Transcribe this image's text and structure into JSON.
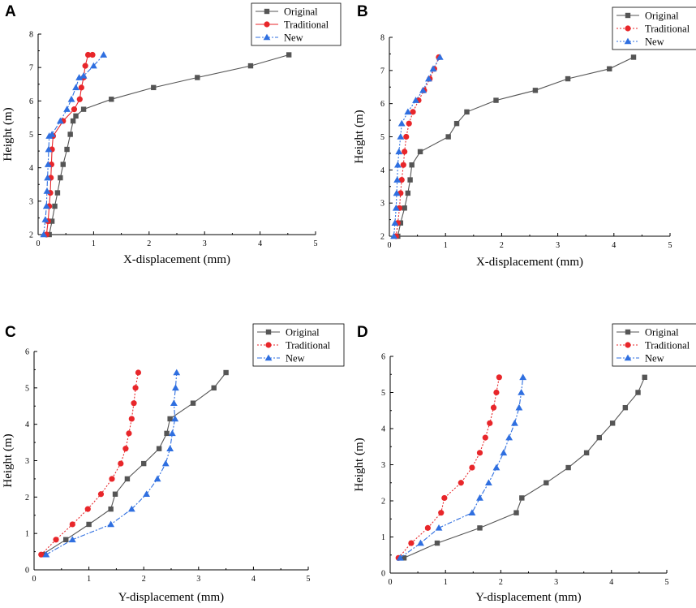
{
  "chart_data": [
    {
      "panel": "A",
      "type": "line",
      "xlabel": "X-displacement  (mm)",
      "ylabel": "Height (m)",
      "xlim": [
        0,
        5
      ],
      "ylim": [
        2,
        8
      ],
      "xticks": [
        0,
        1,
        2,
        3,
        4,
        5
      ],
      "yticks": [
        2,
        3,
        4,
        5,
        6,
        7,
        8
      ],
      "legend_position": "top-right",
      "series": [
        {
          "name": "Original",
          "color": "#555555",
          "marker": "square",
          "line": "solid",
          "x": [
            0.2,
            0.25,
            0.3,
            0.35,
            0.4,
            0.45,
            0.52,
            0.58,
            0.63,
            0.68,
            0.82,
            1.32,
            2.08,
            2.87,
            3.83,
            4.52
          ],
          "y": [
            2.0,
            2.4,
            2.85,
            3.25,
            3.7,
            4.1,
            4.55,
            5.0,
            5.4,
            5.55,
            5.75,
            6.05,
            6.4,
            6.7,
            7.05,
            7.38
          ]
        },
        {
          "name": "Traditional",
          "color": "#e8262a",
          "marker": "circle",
          "line": "solid",
          "x": [
            0.15,
            0.18,
            0.2,
            0.22,
            0.23,
            0.24,
            0.25,
            0.27,
            0.45,
            0.65,
            0.75,
            0.78,
            0.82,
            0.85,
            0.9,
            0.98
          ],
          "y": [
            2.0,
            2.4,
            2.85,
            3.25,
            3.7,
            4.1,
            4.55,
            4.95,
            5.4,
            5.75,
            6.05,
            6.4,
            6.7,
            7.05,
            7.38,
            7.38
          ]
        },
        {
          "name": "New",
          "color": "#2f6fe0",
          "marker": "triangle",
          "line": "dashdot",
          "x": [
            0.1,
            0.13,
            0.15,
            0.16,
            0.17,
            0.18,
            0.19,
            0.2,
            0.25,
            0.4,
            0.52,
            0.6,
            0.68,
            0.74,
            0.82,
            1.0,
            1.18
          ],
          "y": [
            2.0,
            2.45,
            2.85,
            3.3,
            3.7,
            4.1,
            4.55,
            4.95,
            5.0,
            5.4,
            5.75,
            6.05,
            6.4,
            6.7,
            6.75,
            7.05,
            7.38
          ]
        }
      ]
    },
    {
      "panel": "B",
      "type": "line",
      "xlabel": "X-displacement  (mm)",
      "ylabel": "Height (m)",
      "xlim": [
        0,
        5
      ],
      "ylim": [
        2,
        8
      ],
      "xticks": [
        0,
        1,
        2,
        3,
        4,
        5
      ],
      "yticks": [
        2,
        3,
        4,
        5,
        6,
        7,
        8
      ],
      "legend_position": "top-right",
      "series": [
        {
          "name": "Original",
          "color": "#555555",
          "marker": "square",
          "line": "solid",
          "x": [
            0.15,
            0.2,
            0.27,
            0.33,
            0.37,
            0.4,
            0.55,
            1.05,
            1.2,
            1.38,
            1.9,
            2.6,
            3.18,
            3.92,
            4.35
          ],
          "y": [
            2.0,
            2.4,
            2.85,
            3.3,
            3.7,
            4.15,
            4.55,
            5.0,
            5.4,
            5.75,
            6.1,
            6.4,
            6.75,
            7.05,
            7.4
          ]
        },
        {
          "name": "Traditional",
          "color": "#e8262a",
          "marker": "circle",
          "line": "dotted",
          "x": [
            0.12,
            0.15,
            0.18,
            0.2,
            0.22,
            0.25,
            0.27,
            0.3,
            0.35,
            0.42,
            0.52,
            0.62,
            0.72,
            0.8,
            0.88
          ],
          "y": [
            2.0,
            2.4,
            2.85,
            3.3,
            3.7,
            4.15,
            4.55,
            5.0,
            5.4,
            5.75,
            6.1,
            6.4,
            6.75,
            7.05,
            7.4
          ]
        },
        {
          "name": "New",
          "color": "#2f6fe0",
          "marker": "triangle",
          "line": "dotted",
          "x": [
            0.08,
            0.1,
            0.12,
            0.13,
            0.14,
            0.15,
            0.17,
            0.2,
            0.22,
            0.33,
            0.47,
            0.6,
            0.7,
            0.78,
            0.9
          ],
          "y": [
            2.0,
            2.4,
            2.85,
            3.3,
            3.7,
            4.15,
            4.55,
            5.0,
            5.4,
            5.75,
            6.1,
            6.4,
            6.75,
            7.05,
            7.4
          ]
        }
      ]
    },
    {
      "panel": "C",
      "type": "line",
      "xlabel": "Y-displacement  (mm)",
      "ylabel": "Height  (m)",
      "xlim": [
        0,
        5
      ],
      "ylim": [
        0,
        6
      ],
      "xticks": [
        0,
        1,
        2,
        3,
        4,
        5
      ],
      "yticks": [
        0,
        1,
        2,
        3,
        4,
        5,
        6
      ],
      "legend_position": "top-right",
      "series": [
        {
          "name": "Original",
          "color": "#555555",
          "marker": "square",
          "line": "solid",
          "x": [
            0.15,
            0.58,
            1.0,
            1.4,
            1.48,
            1.7,
            2.0,
            2.28,
            2.42,
            2.48,
            2.9,
            3.28,
            3.5
          ],
          "y": [
            0.42,
            0.83,
            1.25,
            1.67,
            2.08,
            2.5,
            2.92,
            3.33,
            3.75,
            4.15,
            4.58,
            5.0,
            5.42
          ]
        },
        {
          "name": "Traditional",
          "color": "#e8262a",
          "marker": "circle",
          "line": "dotted",
          "x": [
            0.13,
            0.4,
            0.7,
            0.98,
            1.22,
            1.42,
            1.58,
            1.67,
            1.73,
            1.78,
            1.82,
            1.85,
            1.9
          ],
          "y": [
            0.42,
            0.83,
            1.25,
            1.67,
            2.08,
            2.5,
            2.92,
            3.33,
            3.75,
            4.15,
            4.58,
            5.0,
            5.42
          ]
        },
        {
          "name": "New",
          "color": "#2f6fe0",
          "marker": "triangle",
          "line": "dashdot",
          "x": [
            0.22,
            0.7,
            1.4,
            1.78,
            2.05,
            2.25,
            2.4,
            2.48,
            2.52,
            2.57,
            2.55,
            2.58,
            2.6
          ],
          "y": [
            0.42,
            0.83,
            1.25,
            1.67,
            2.08,
            2.5,
            2.92,
            3.33,
            3.75,
            4.15,
            4.58,
            5.0,
            5.42
          ]
        }
      ]
    },
    {
      "panel": "D",
      "type": "line",
      "xlabel": "Y-displacement  (mm)",
      "ylabel": "Height  (m)",
      "xlim": [
        0,
        5
      ],
      "ylim": [
        0,
        6
      ],
      "xticks": [
        0,
        1,
        2,
        3,
        4,
        5
      ],
      "yticks": [
        0,
        1,
        2,
        3,
        4,
        5,
        6
      ],
      "legend_position": "top-right",
      "series": [
        {
          "name": "Original",
          "color": "#555555",
          "marker": "square",
          "line": "solid",
          "x": [
            0.25,
            0.85,
            1.62,
            2.28,
            2.38,
            2.82,
            3.22,
            3.55,
            3.78,
            4.02,
            4.25,
            4.48,
            4.6
          ],
          "y": [
            0.42,
            0.83,
            1.25,
            1.67,
            2.08,
            2.5,
            2.92,
            3.33,
            3.75,
            4.15,
            4.58,
            5.0,
            5.42
          ]
        },
        {
          "name": "Traditional",
          "color": "#e8262a",
          "marker": "circle",
          "line": "dotted",
          "x": [
            0.15,
            0.38,
            0.68,
            0.92,
            0.98,
            1.28,
            1.48,
            1.62,
            1.72,
            1.8,
            1.87,
            1.92,
            1.97
          ],
          "y": [
            0.42,
            0.83,
            1.25,
            1.67,
            2.08,
            2.5,
            2.92,
            3.33,
            3.75,
            4.15,
            4.58,
            5.0,
            5.42
          ]
        },
        {
          "name": "New",
          "color": "#2f6fe0",
          "marker": "triangle",
          "line": "dashdot",
          "x": [
            0.18,
            0.55,
            0.88,
            1.48,
            1.62,
            1.78,
            1.92,
            2.05,
            2.15,
            2.25,
            2.33,
            2.37,
            2.4
          ],
          "y": [
            0.42,
            0.83,
            1.25,
            1.67,
            2.08,
            2.5,
            2.92,
            3.33,
            3.75,
            4.15,
            4.58,
            5.0,
            5.42
          ]
        }
      ]
    }
  ]
}
